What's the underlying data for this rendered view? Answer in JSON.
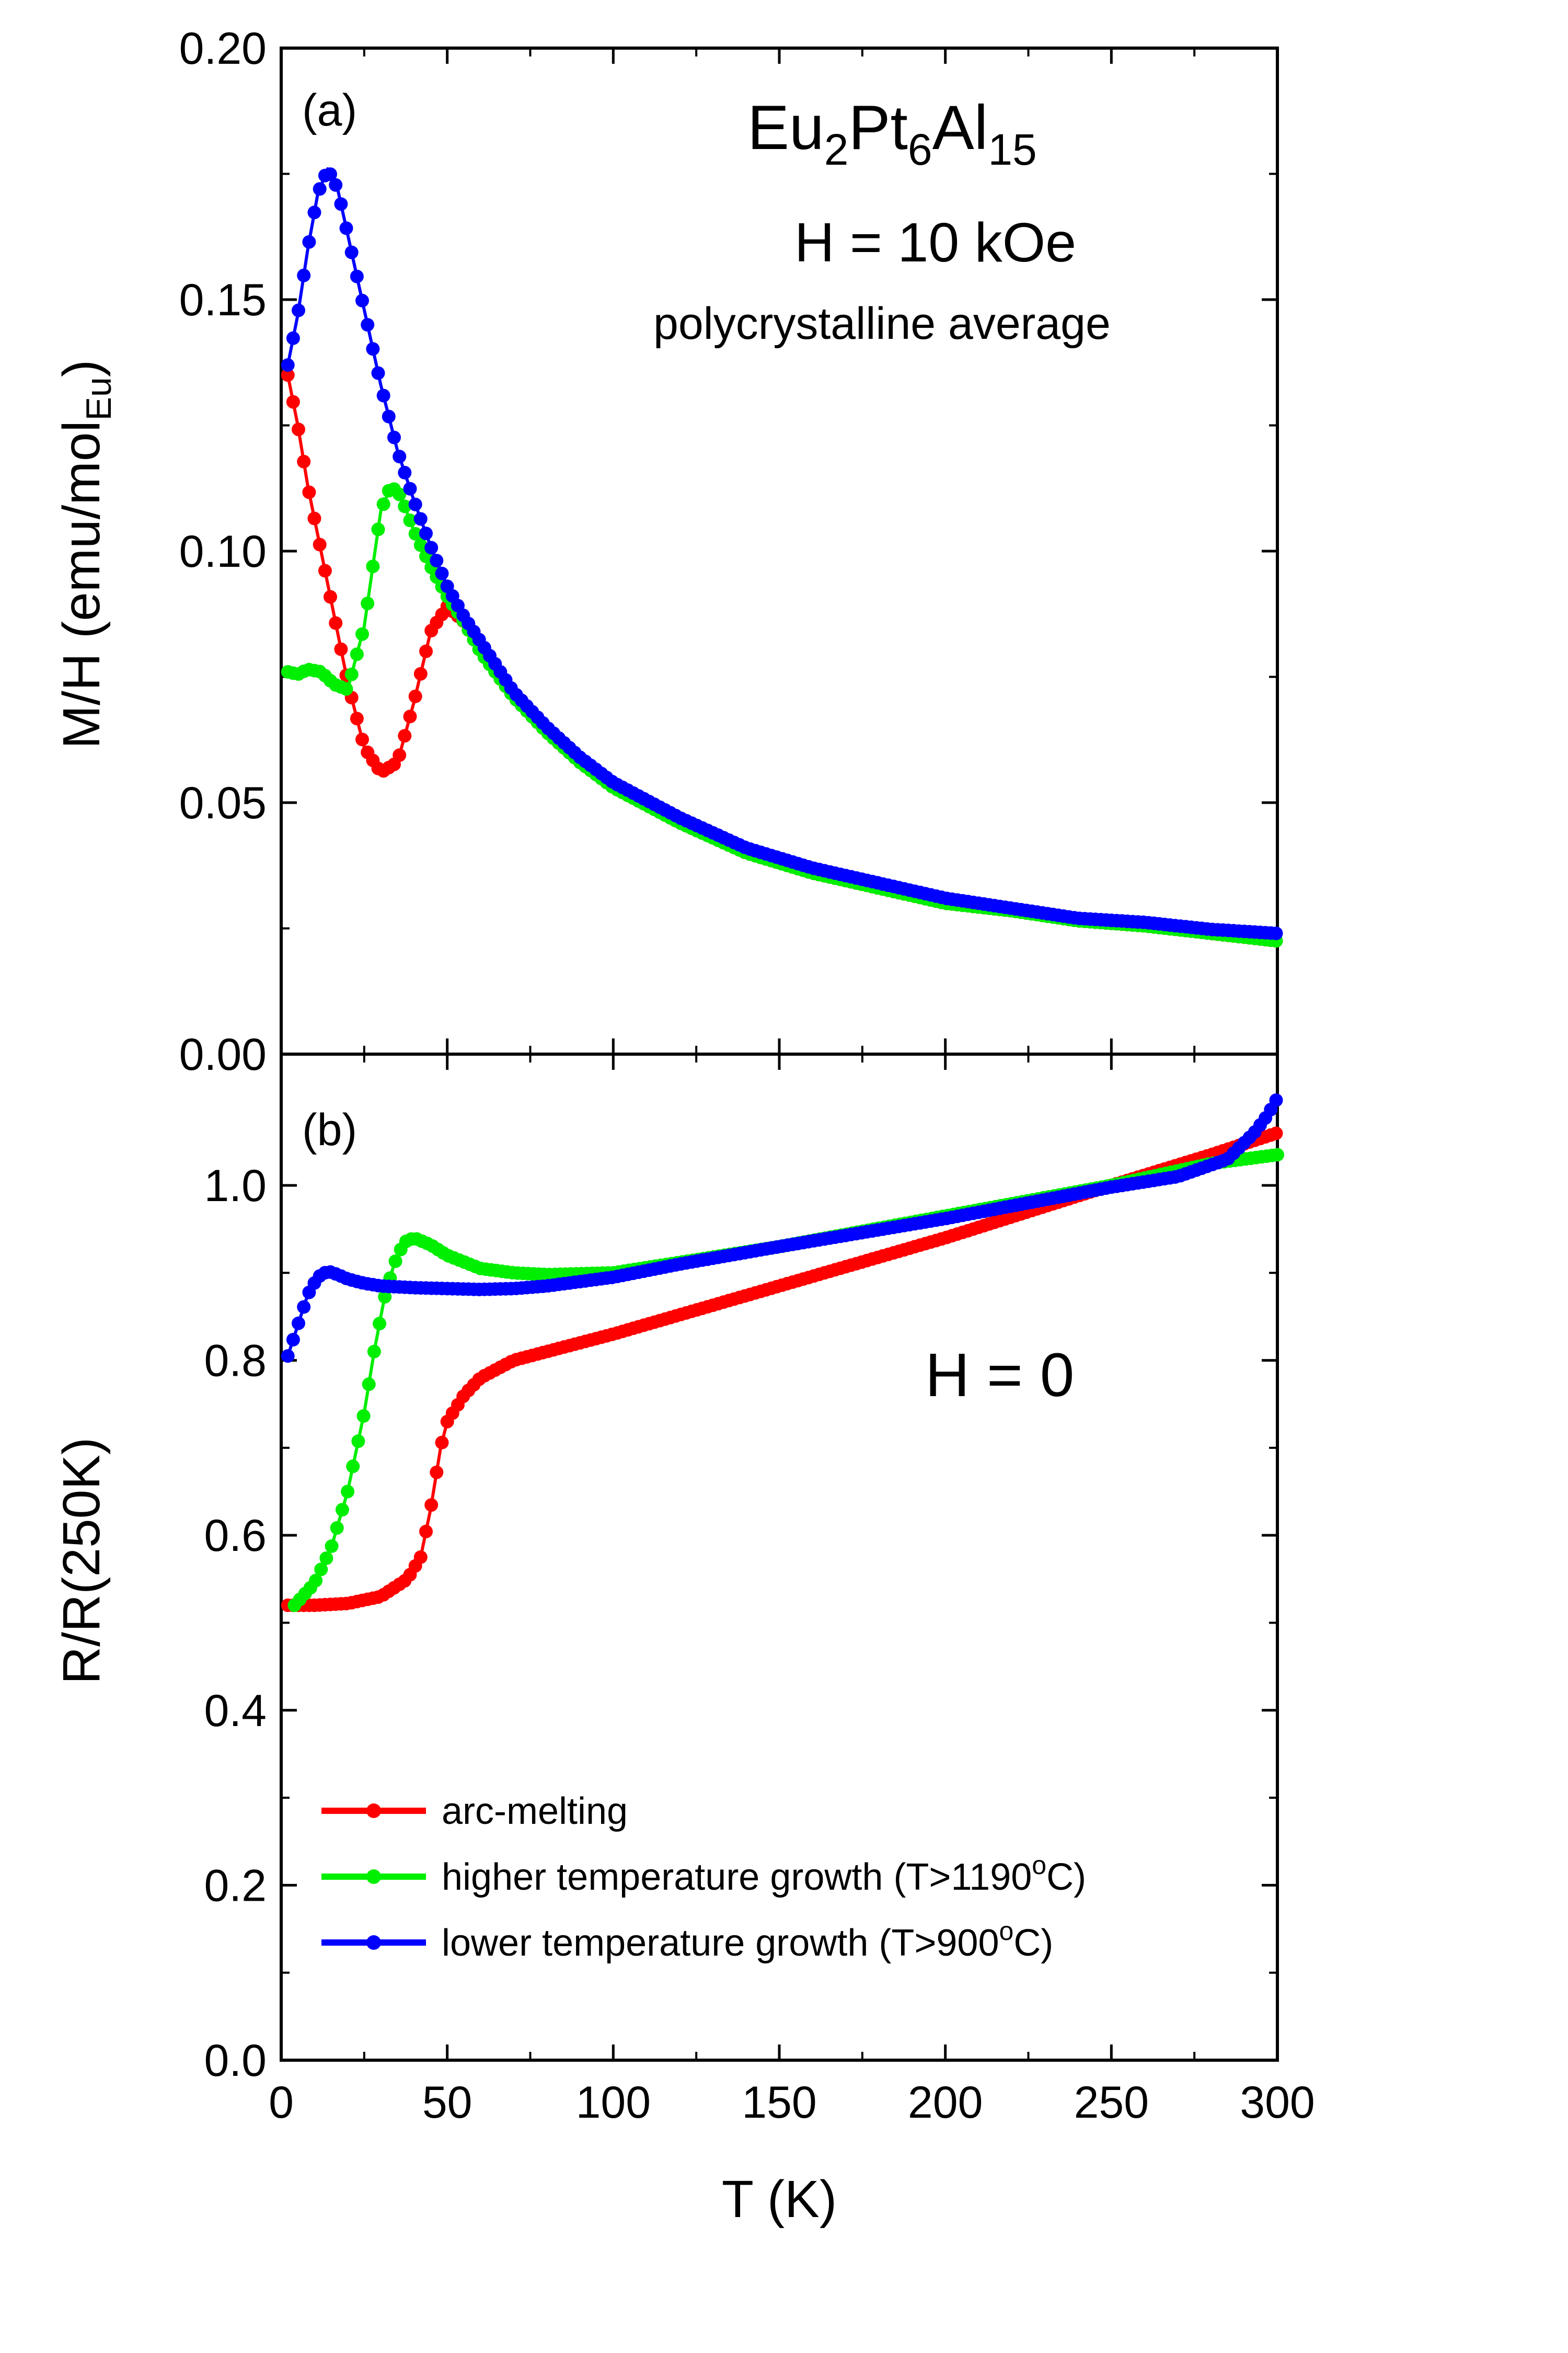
{
  "chart_data": [
    {
      "panel": "(a)",
      "type": "line",
      "title_parts": {
        "base1": "Eu",
        "sub1": "2",
        "base2": "Pt",
        "sub2": "6",
        "base3": "Al",
        "sub3": "15"
      },
      "field_text": "H = 10 kOe",
      "subtitle": "polycrystalline average",
      "ylabel": {
        "main": "M/H (emu/mol",
        "sub": "Eu",
        "close": ")"
      },
      "xlabel": "",
      "xlim": [
        0,
        300
      ],
      "ylim": [
        0,
        0.2
      ],
      "yticks": [
        "0.00",
        "0.05",
        "0.10",
        "0.15",
        "0.20"
      ],
      "series": [
        {
          "name": "arc-melting",
          "color": "#ff0000",
          "x": [
            2,
            5,
            8,
            12,
            16,
            20,
            25,
            30,
            35,
            40,
            45,
            50,
            55,
            60,
            70,
            80,
            90,
            100,
            120,
            140,
            160,
            180,
            200,
            220,
            240,
            260,
            280,
            300
          ],
          "y": [
            0.135,
            0.125,
            0.113,
            0.1,
            0.087,
            0.074,
            0.061,
            0.056,
            0.058,
            0.07,
            0.084,
            0.089,
            0.086,
            0.08,
            0.071,
            0.064,
            0.058,
            0.053,
            0.046,
            0.04,
            0.036,
            0.033,
            0.03,
            0.0285,
            0.0265,
            0.0255,
            0.024,
            0.0225
          ]
        },
        {
          "name": "higher temperature growth (T>1190°C)",
          "color": "#00ee00",
          "x": [
            2,
            5,
            8,
            12,
            16,
            20,
            25,
            30,
            33,
            36,
            40,
            45,
            50,
            55,
            60,
            70,
            80,
            90,
            100,
            120,
            140,
            160,
            180,
            200,
            220,
            240,
            260,
            280,
            300
          ],
          "y": [
            0.076,
            0.0755,
            0.0765,
            0.076,
            0.0735,
            0.0725,
            0.085,
            0.108,
            0.113,
            0.111,
            0.104,
            0.097,
            0.091,
            0.086,
            0.08,
            0.071,
            0.064,
            0.058,
            0.053,
            0.046,
            0.04,
            0.036,
            0.033,
            0.03,
            0.0285,
            0.0265,
            0.0255,
            0.024,
            0.0225
          ]
        },
        {
          "name": "lower temperature growth (T>900°C)",
          "color": "#0000ff",
          "x": [
            2,
            5,
            8,
            11,
            14,
            17,
            20,
            25,
            30,
            35,
            40,
            45,
            50,
            55,
            60,
            70,
            80,
            90,
            100,
            120,
            140,
            160,
            180,
            200,
            220,
            240,
            260,
            280,
            300
          ],
          "y": [
            0.137,
            0.147,
            0.16,
            0.171,
            0.176,
            0.172,
            0.163,
            0.148,
            0.133,
            0.12,
            0.11,
            0.101,
            0.093,
            0.087,
            0.082,
            0.072,
            0.065,
            0.059,
            0.054,
            0.047,
            0.041,
            0.037,
            0.034,
            0.031,
            0.029,
            0.027,
            0.0262,
            0.0248,
            0.024
          ]
        }
      ]
    },
    {
      "panel": "(b)",
      "type": "line",
      "annotation": "H = 0",
      "ylabel": "R/R(250K)",
      "xlabel": "T (K)",
      "xlim": [
        0,
        300
      ],
      "ylim": [
        0,
        1.15
      ],
      "xticks": [
        "0",
        "50",
        "100",
        "150",
        "200",
        "250",
        "300"
      ],
      "yticks": [
        "0.0",
        "0.2",
        "0.4",
        "0.6",
        "0.8",
        "1.0"
      ],
      "series": [
        {
          "name": "arc-melting",
          "color": "#ff0000",
          "x": [
            2,
            10,
            20,
            30,
            38,
            42,
            45,
            48,
            50,
            55,
            60,
            70,
            80,
            100,
            150,
            200,
            250,
            280,
            300
          ],
          "y": [
            0.52,
            0.52,
            0.522,
            0.53,
            0.55,
            0.575,
            0.63,
            0.7,
            0.73,
            0.76,
            0.78,
            0.8,
            0.81,
            0.83,
            0.885,
            0.94,
            1.0,
            1.035,
            1.06
          ]
        },
        {
          "name": "higher temperature growth (T>1190°C)",
          "color": "#00ee00",
          "x": [
            4,
            10,
            15,
            20,
            25,
            28,
            31,
            34,
            37,
            40,
            45,
            50,
            60,
            70,
            80,
            100,
            150,
            200,
            250,
            280,
            300
          ],
          "y": [
            0.52,
            0.545,
            0.585,
            0.65,
            0.74,
            0.81,
            0.87,
            0.91,
            0.935,
            0.94,
            0.932,
            0.92,
            0.905,
            0.9,
            0.898,
            0.9,
            0.93,
            0.965,
            1.0,
            1.025,
            1.035
          ]
        },
        {
          "name": "lower temperature growth (T>900°C)",
          "color": "#0000ff",
          "x": [
            2,
            5,
            8,
            11,
            14,
            17,
            20,
            25,
            30,
            40,
            50,
            60,
            70,
            80,
            100,
            120,
            150,
            200,
            250,
            270,
            285,
            293,
            297,
            300
          ],
          "y": [
            0.805,
            0.84,
            0.875,
            0.895,
            0.902,
            0.898,
            0.893,
            0.888,
            0.885,
            0.883,
            0.882,
            0.881,
            0.882,
            0.885,
            0.895,
            0.91,
            0.93,
            0.962,
            0.998,
            1.01,
            1.03,
            1.06,
            1.08,
            1.1
          ]
        }
      ]
    }
  ],
  "legend": {
    "items": [
      {
        "label": "arc-melting",
        "color": "#ff0000"
      },
      {
        "label": "higher temperature growth (T>1190",
        "sup": "o",
        "tail": "C)",
        "color": "#00ee00"
      },
      {
        "label": "lower temperature growth (T>900",
        "sup": "o",
        "tail": "C)",
        "color": "#0000ff"
      }
    ]
  }
}
